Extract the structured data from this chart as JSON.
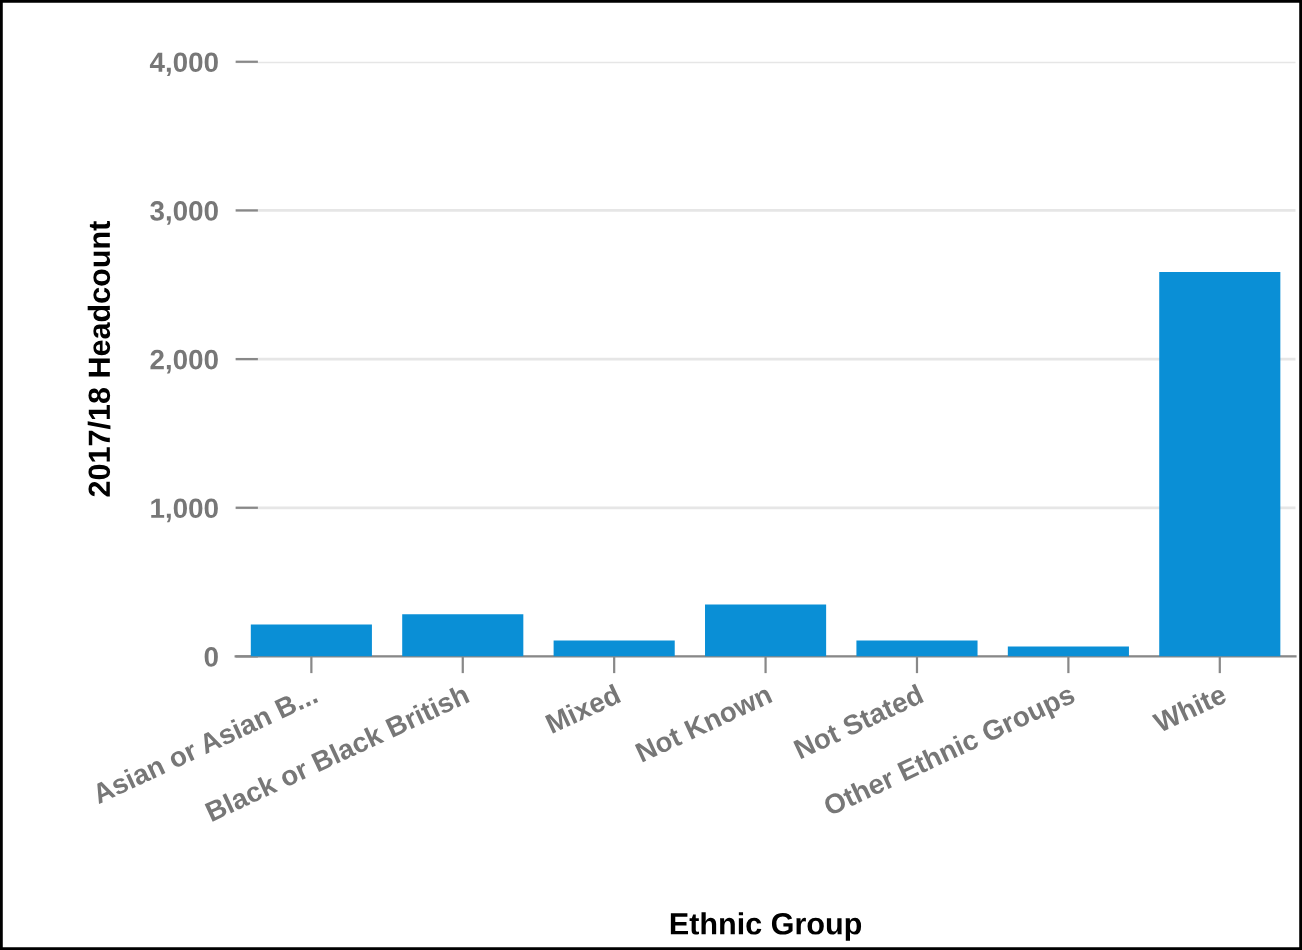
{
  "chart_data": {
    "type": "bar",
    "xlabel": "Ethnic Group",
    "ylabel": "2017/18 Headcount",
    "categories": [
      "Asian or Asian B...",
      "Black or Black British",
      "Mixed",
      "Not Known",
      "Not Stated",
      "Other Ethnic Groups",
      "White"
    ],
    "values": [
      215,
      283,
      108,
      350,
      108,
      67,
      2586
    ],
    "color": "#0a8fd6",
    "ylim": [
      0,
      4000
    ],
    "yticks": [
      0,
      {
        "value": 1000,
        "label": "1,000"
      },
      {
        "value": 2000,
        "label": "2,000"
      },
      {
        "value": 3000,
        "label": "3,000"
      },
      {
        "value": 4000,
        "label": "4,000"
      }
    ],
    "grid": "y"
  }
}
